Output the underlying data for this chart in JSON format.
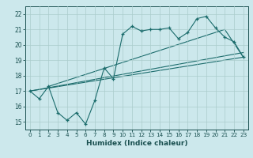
{
  "xlabel": "Humidex (Indice chaleur)",
  "bg_color": "#cce8ec",
  "grid_color": "#aacccc",
  "line_color": "#1a6b6b",
  "xlim": [
    -0.5,
    23.5
  ],
  "ylim": [
    14.5,
    22.5
  ],
  "xticks": [
    0,
    1,
    2,
    3,
    4,
    5,
    6,
    7,
    8,
    9,
    10,
    11,
    12,
    13,
    14,
    15,
    16,
    17,
    18,
    19,
    20,
    21,
    22,
    23
  ],
  "yticks": [
    15,
    16,
    17,
    18,
    19,
    20,
    21,
    22
  ],
  "line1_x": [
    0,
    1,
    2,
    3,
    4,
    5,
    6,
    7,
    8,
    9,
    10,
    11,
    12,
    13,
    14,
    15,
    16,
    17,
    18,
    19,
    20,
    21,
    22,
    23
  ],
  "line1_y": [
    17.0,
    16.5,
    17.3,
    15.6,
    15.1,
    15.6,
    14.85,
    16.4,
    18.5,
    17.8,
    20.7,
    21.2,
    20.9,
    21.0,
    21.0,
    21.1,
    20.4,
    20.8,
    21.7,
    21.85,
    21.1,
    20.5,
    20.2,
    19.2
  ],
  "line2_x": [
    0,
    23
  ],
  "line2_y": [
    17.0,
    19.2
  ],
  "line3_x": [
    2,
    21,
    23
  ],
  "line3_y": [
    17.3,
    21.0,
    19.2
  ],
  "line4_x": [
    0,
    23
  ],
  "line4_y": [
    17.0,
    19.5
  ]
}
